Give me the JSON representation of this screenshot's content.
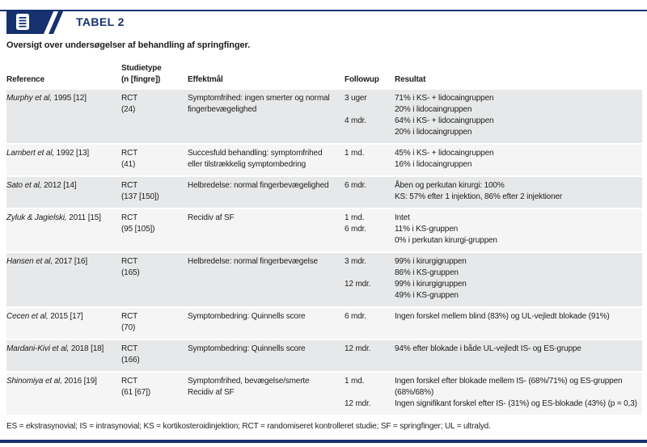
{
  "header": {
    "tab_label": "TABEL 2",
    "icon": "document-lines-icon"
  },
  "title": "Oversigt over undersøgelser af behandling af springfinger.",
  "table": {
    "columns": {
      "reference": "Reference",
      "studietype_line1": "Studietype",
      "studietype_line2": "(n [fingre])",
      "effektmaal": "Effektmål",
      "followup": "Followup",
      "resultat": "Resultat"
    },
    "rows": [
      {
        "authors": "Murphy et al,",
        "year": "1995 [12]",
        "type": "RCT",
        "n": "(24)",
        "endpoint": [
          "Symptomfrihed: ingen smerter og normal fingerbevægelighed"
        ],
        "followups": [
          {
            "time": "3 uger",
            "results": [
              "71% i KS- + lidocaingruppen",
              "20% i lidocaingruppen"
            ]
          },
          {
            "time": "4 mdr.",
            "results": [
              "64% i KS- + lidocaingruppen",
              "20% i lidocaingruppen"
            ]
          }
        ]
      },
      {
        "authors": "Lambert et al,",
        "year": "1992 [13]",
        "type": "RCT",
        "n": "(41)",
        "endpoint": [
          "Succesfuld behandling: symptomfrihed eller tilstrækkelig symptombedring"
        ],
        "followups": [
          {
            "time": "1 md.",
            "results": [
              "45% i KS- + lidocaingruppen",
              "16% i lidocaingruppen"
            ]
          }
        ]
      },
      {
        "authors": "Sato et al,",
        "year": "2012 [14]",
        "type": "RCT",
        "n": "(137 [150])",
        "endpoint": [
          "Helbredelse: normal fingerbevægelighed"
        ],
        "followups": [
          {
            "time": "6 mdr.",
            "results": [
              "Åben og perkutan kirurgi: 100%",
              "KS: 57% efter 1 injektion, 86% efter 2 injektioner"
            ]
          }
        ]
      },
      {
        "authors": "Zyluk & Jagielski,",
        "year": "2011 [15]",
        "type": "RCT",
        "n": "(95 [105])",
        "endpoint": [
          "Recidiv af SF"
        ],
        "followups": [
          {
            "time": "1 md.",
            "results": [
              "Intet"
            ]
          },
          {
            "time": "6 mdr.",
            "results": [
              "11% i KS-gruppen",
              "0% i perkutan kirurgi-gruppen"
            ]
          }
        ]
      },
      {
        "authors": "Hansen et al,",
        "year": "2017 [16]",
        "type": "RCT",
        "n": "(165)",
        "endpoint": [
          "Helbredelse: normal fingerbevægelse"
        ],
        "followups": [
          {
            "time": "3 mdr.",
            "results": [
              "99% i kirurgigruppen",
              "86% i KS-gruppen"
            ]
          },
          {
            "time": "12 mdr.",
            "results": [
              "99% i kirurgigruppen",
              "49% i KS-gruppen"
            ]
          }
        ]
      },
      {
        "authors": "Cecen et al,",
        "year": "2015 [17]",
        "type": "RCT",
        "n": "(70)",
        "endpoint": [
          "Symptombedring: Quinnells score"
        ],
        "followups": [
          {
            "time": "6 mdr.",
            "results": [
              "Ingen forskel mellem blind (83%) og UL-vejledt blokade (91%)"
            ]
          }
        ]
      },
      {
        "authors": "Mardani-Kivi et al,",
        "year": "2018 [18]",
        "type": "RCT",
        "n": "(166)",
        "endpoint": [
          "Symptombedring: Quinnells score"
        ],
        "followups": [
          {
            "time": "12 mdr.",
            "results": [
              "94% efter blokade i både UL-vejledt IS- og ES-gruppe"
            ]
          }
        ]
      },
      {
        "authors": "Shinomiya et al,",
        "year": "2016 [19]",
        "type": "RCT",
        "n": "(61 [67])",
        "endpoint": [
          "Symptomfrihed, bevægelse/smerte",
          "Recidiv af SF"
        ],
        "followups": [
          {
            "time": "1 md.",
            "results": [
              "Ingen forskel efter blokade mellem IS- (68%/71%) og ES-gruppen (68%/68%)"
            ]
          },
          {
            "time": "12 mdr.",
            "results": [
              "Ingen signifikant forskel efter IS- (31%) og ES-blokade (43%) (p = 0,3)"
            ]
          }
        ]
      }
    ]
  },
  "footnote": "ES = ekstrasynovial; IS = intrasynovial; KS = kortikosteroidinjektion; RCT = randomiseret kontrolleret studie; SF = springfinger; UL = ultralyd.",
  "colors": {
    "navy": "#16316e",
    "row_dark": "#e7e8e9",
    "row_light": "#f4f5f4",
    "text": "#1d1d1b"
  }
}
